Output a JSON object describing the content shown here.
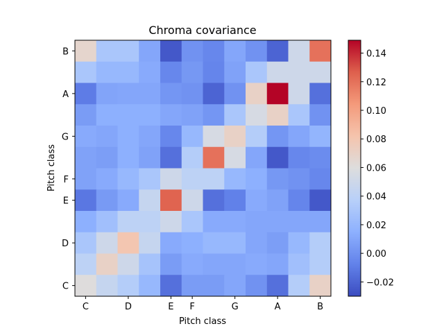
{
  "chart_data": {
    "type": "heatmap",
    "title": "Chroma covariance",
    "xlabel": "Pitch class",
    "ylabel": "Pitch class",
    "x_tick_labels": [
      "C",
      "D",
      "E",
      "F",
      "G",
      "A",
      "B"
    ],
    "y_tick_labels": [
      "C",
      "D",
      "E",
      "F",
      "G",
      "A",
      "B"
    ],
    "colormap": "coolwarm",
    "vmin": -0.03,
    "vmax": 0.149,
    "colorbar_ticks": [
      "-0.02",
      "0.00",
      "0.02",
      "0.04",
      "0.06",
      "0.08",
      "0.10",
      "0.12",
      "0.14"
    ],
    "grid": false,
    "rows_top_to_bottom": [
      [
        0.067,
        0.03,
        0.03,
        0.01,
        -0.025,
        0.0,
        -0.005,
        0.01,
        0.0,
        -0.02,
        0.05,
        0.12
      ],
      [
        0.03,
        0.02,
        0.02,
        0.012,
        -0.005,
        0.003,
        -0.006,
        0.008,
        0.03,
        0.05,
        0.05,
        0.05
      ],
      [
        -0.01,
        0.009,
        0.01,
        0.01,
        0.002,
        0.0,
        -0.02,
        0.0,
        0.07,
        0.149,
        0.05,
        -0.015
      ],
      [
        0.005,
        0.015,
        0.015,
        0.015,
        0.01,
        0.008,
        0.002,
        0.03,
        0.055,
        0.07,
        0.03,
        0.0
      ],
      [
        0.012,
        0.01,
        0.015,
        0.01,
        -0.005,
        0.02,
        0.055,
        0.07,
        0.035,
        0.002,
        0.01,
        0.018
      ],
      [
        0.008,
        0.006,
        0.015,
        0.008,
        -0.015,
        0.035,
        0.12,
        0.055,
        0.01,
        -0.025,
        -0.005,
        -0.003
      ],
      [
        0.008,
        0.012,
        0.02,
        0.03,
        0.05,
        0.04,
        0.04,
        0.02,
        0.015,
        0.003,
        0.0,
        -0.005
      ],
      [
        -0.012,
        0.004,
        0.012,
        0.045,
        0.125,
        0.05,
        -0.015,
        -0.008,
        0.012,
        0.008,
        -0.006,
        -0.025
      ],
      [
        0.015,
        0.025,
        0.04,
        0.04,
        0.05,
        0.03,
        0.012,
        0.012,
        0.01,
        0.01,
        0.01,
        0.01
      ],
      [
        0.03,
        0.05,
        0.08,
        0.045,
        0.012,
        0.015,
        0.02,
        0.02,
        0.01,
        0.006,
        0.02,
        0.035
      ],
      [
        0.04,
        0.07,
        0.05,
        0.028,
        0.005,
        0.012,
        0.01,
        0.01,
        0.012,
        0.01,
        0.025,
        0.035
      ],
      [
        0.06,
        0.045,
        0.035,
        0.02,
        -0.015,
        0.005,
        0.005,
        0.01,
        0.0,
        -0.015,
        0.035,
        0.07
      ]
    ]
  }
}
